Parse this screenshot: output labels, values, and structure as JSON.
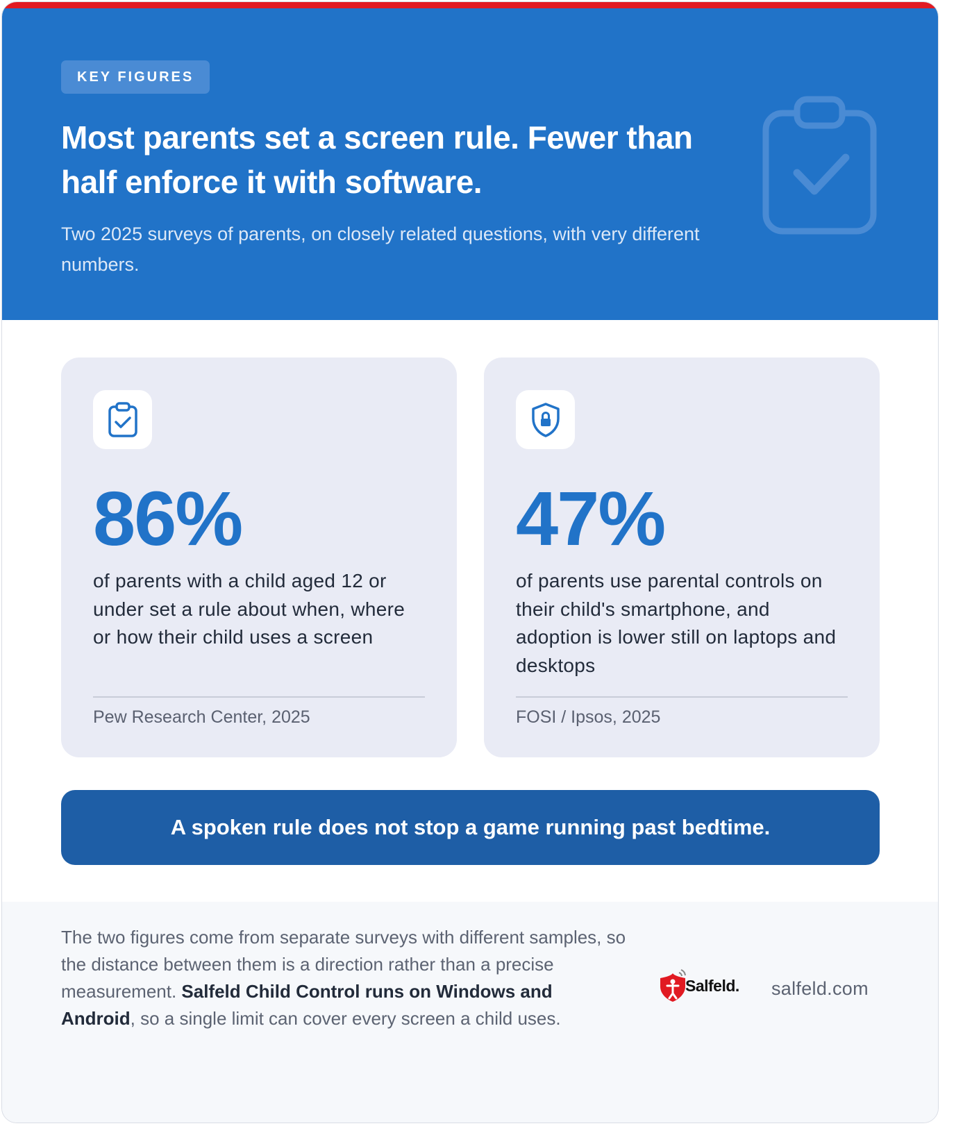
{
  "header": {
    "label": "KEY FIGURES",
    "title": "Most parents set a screen rule. Fewer than half enforce it with software.",
    "subtitle": "Two 2025 surveys of parents, on closely related questions, with very different numbers.",
    "icon": "clipboard-check-icon"
  },
  "stats": [
    {
      "icon": "clipboard-check-icon",
      "value": "86%",
      "description": "of parents with a child aged 12 or under set a rule about when, where or how their child uses a screen",
      "source": "Pew Research Center, 2025"
    },
    {
      "icon": "shield-lock-icon",
      "value": "47%",
      "description": "of parents use parental controls on their child's smartphone, and adoption is lower still on laptops and desktops",
      "source": "FOSI / Ipsos, 2025"
    }
  ],
  "banner": {
    "text": "A spoken rule does not stop a game running past bedtime."
  },
  "footer": {
    "text_part1": "The two figures come from separate surveys with different samples, so the distance between them is a direction rather than a precise measurement. ",
    "text_bold": "Salfeld Child Control runs on Windows and Android",
    "text_part2": ", so a single limit can cover every screen a child uses.",
    "brand_name": "Salfeld.",
    "website": "salfeld.com"
  },
  "colors": {
    "accent_red": "#e11a22",
    "primary_blue": "#2173c8",
    "banner_blue": "#1e5ea6",
    "card_background": "#e9ebf5"
  }
}
